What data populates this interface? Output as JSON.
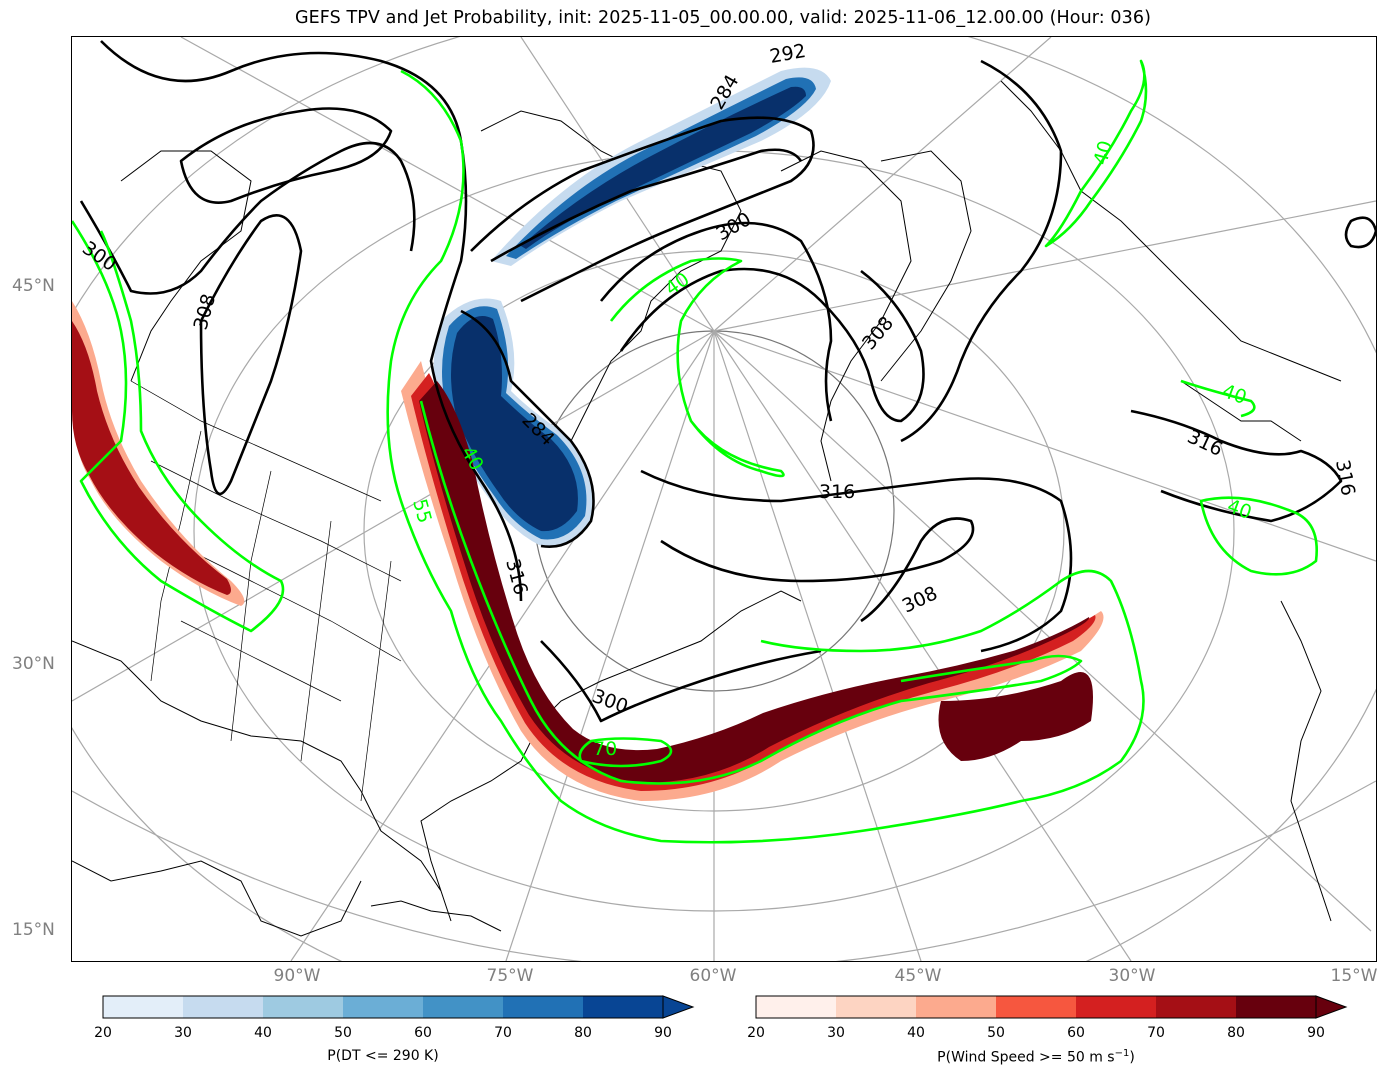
{
  "title": "GEFS TPV and Jet Probability, init: 2025-11-05_00.00.00, valid: 2025-11-06_12.00.00 (Hour: 036)",
  "lat_labels": [
    "45°N",
    "30°N",
    "15°N"
  ],
  "lon_labels": [
    "90°W",
    "75°W",
    "60°W",
    "45°W",
    "30°W",
    "15°W"
  ],
  "contour_labels": {
    "theta": [
      "300",
      "308",
      "292",
      "284",
      "300",
      "316",
      "308",
      "316",
      "308",
      "316",
      "300",
      "284",
      "316"
    ],
    "jet": [
      "40",
      "40",
      "40",
      "40",
      "55",
      "70",
      "40"
    ]
  },
  "colorbar_dt": {
    "label": "P(DT <= 290 K)",
    "ticks": [
      "20",
      "30",
      "40",
      "50",
      "60",
      "70",
      "80",
      "90"
    ],
    "colors": [
      "#e3eef9",
      "#c6dbef",
      "#9ecae1",
      "#6baed6",
      "#4292c6",
      "#2171b5",
      "#084594"
    ]
  },
  "colorbar_wind": {
    "label_prefix": "P(Wind Speed >= 50 m s",
    "label_sup": "−1",
    "label_suffix": ")",
    "ticks": [
      "20",
      "30",
      "40",
      "50",
      "60",
      "70",
      "80",
      "90"
    ],
    "colors": [
      "#fff0eb",
      "#fdd4c2",
      "#fcaa8e",
      "#f6573f",
      "#d42020",
      "#a50f15",
      "#67000d"
    ]
  },
  "colors": {
    "tpv_fill": "#08306b",
    "jet_fill": "#67000d",
    "jet_contour": "#00ff00",
    "theta_contour": "#000000",
    "graticule": "#a9a9a9"
  }
}
